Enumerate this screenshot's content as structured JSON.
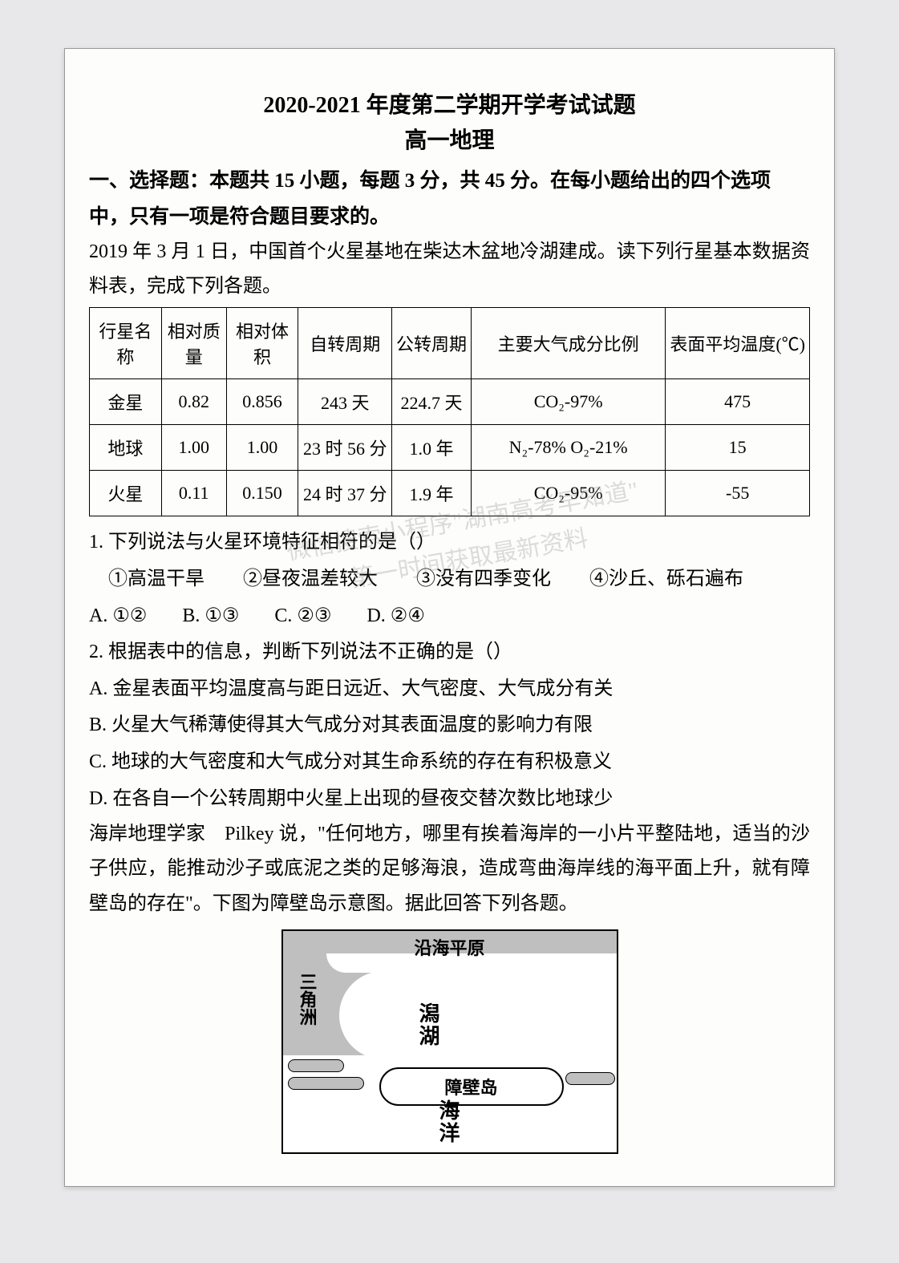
{
  "exam": {
    "title": "2020-2021 年度第二学期开学考试试题",
    "subtitle": "高一地理",
    "section1": "一、选择题：本题共 15 小题，每题 3 分，共 45 分。在每小题给出的四个选项中，只有一项是符合题目要求的。",
    "intro1": "2019 年 3 月 1 日，中国首个火星基地在柴达木盆地冷湖建成。读下列行星基本数据资料表，完成下列各题。"
  },
  "table": {
    "headers": [
      "行星名称",
      "相对质量",
      "相对体积",
      "自转周期",
      "公转周期",
      "主要大气成分比例",
      "表面平均温度(℃)"
    ],
    "col_widths": [
      "10%",
      "9%",
      "10%",
      "13%",
      "11%",
      "27%",
      "20%"
    ],
    "rows": [
      [
        "金星",
        "0.82",
        "0.856",
        "243 天",
        "224.7 天",
        "CO₂-97%",
        "475"
      ],
      [
        "地球",
        "1.00",
        "1.00",
        "23 时 56 分",
        "1.0 年",
        "N₂-78% O₂-21%",
        "15"
      ],
      [
        "火星",
        "0.11",
        "0.150",
        "24 时 37 分",
        "1.9 年",
        "CO₂-95%",
        "-55"
      ]
    ]
  },
  "q1": {
    "stem": "1. 下列说法与火星环境特征相符的是（）",
    "circled": "①高温干旱　　②昼夜温差较大　　③没有四季变化　　④沙丘、砾石遍布",
    "optA": "A. ①②",
    "optB": "B. ①③",
    "optC": "C. ②③",
    "optD": "D. ②④"
  },
  "q2": {
    "stem": "2. 根据表中的信息，判断下列说法不正确的是（）",
    "optA": "A. 金星表面平均温度高与距日远近、大气密度、大气成分有关",
    "optB": "B. 火星大气稀薄使得其大气成分对其表面温度的影响力有限",
    "optC": "C. 地球的大气密度和大气成分对其生命系统的存在有积极意义",
    "optD": "D. 在各自一个公转周期中火星上出现的昼夜交替次数比地球少"
  },
  "passage2": "海岸地理学家　Pilkey 说，\"任何地方，哪里有挨着海岸的一小片平整陆地，适当的沙子供应，能推动沙子或底泥之类的足够海浪，造成弯曲海岸线的海平面上升，就有障壁岛的存在\"。下图为障壁岛示意图。据此回答下列各题。",
  "diagram": {
    "coast": "沿海平原",
    "delta": "三角洲",
    "lagoon1": "潟",
    "lagoon2": "湖",
    "barrier": "障壁岛",
    "sea1": "海",
    "sea2": "洋",
    "land_color": "#bfbfbf",
    "bg_color": "#ffffff",
    "border_color": "#000000"
  },
  "watermark": {
    "line1": "微信搜索小程序\"湖南高考早知道\"",
    "line2": "第一时间获取最新资料"
  },
  "style": {
    "page_bg": "#fdfdfb",
    "body_bg": "#e8e8ea",
    "text_color": "#000000",
    "title_fontsize": 28,
    "body_fontsize": 24,
    "table_fontsize": 22
  }
}
